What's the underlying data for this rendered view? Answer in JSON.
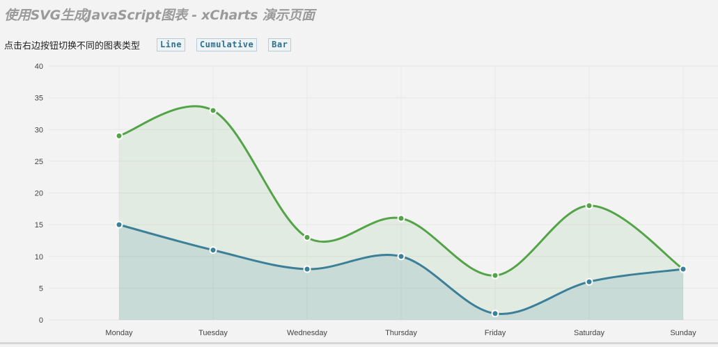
{
  "page": {
    "title": "使用SVG生成JavaScript图表 - xCharts 演示页面"
  },
  "toolbar": {
    "label": "点击右边按钮切换不同的图表类型",
    "buttons": [
      {
        "label": "Line"
      },
      {
        "label": "Cumulative"
      },
      {
        "label": "Bar"
      }
    ]
  },
  "colors": {
    "series_1": "#3b8098",
    "series_2": "#52a447"
  },
  "chart_data": {
    "type": "area",
    "categories": [
      "Monday",
      "Tuesday",
      "Wednesday",
      "Thursday",
      "Friday",
      "Saturday",
      "Sunday"
    ],
    "series": [
      {
        "values": [
          15,
          11,
          8,
          10,
          1,
          6,
          8
        ]
      },
      {
        "values": [
          29,
          33,
          13,
          16,
          7,
          18,
          8
        ]
      }
    ],
    "ylim": [
      0,
      40
    ],
    "yticks": [
      0,
      5,
      10,
      15,
      20,
      25,
      30,
      35,
      40
    ],
    "grid": true,
    "title": "",
    "xlabel": "",
    "ylabel": ""
  }
}
